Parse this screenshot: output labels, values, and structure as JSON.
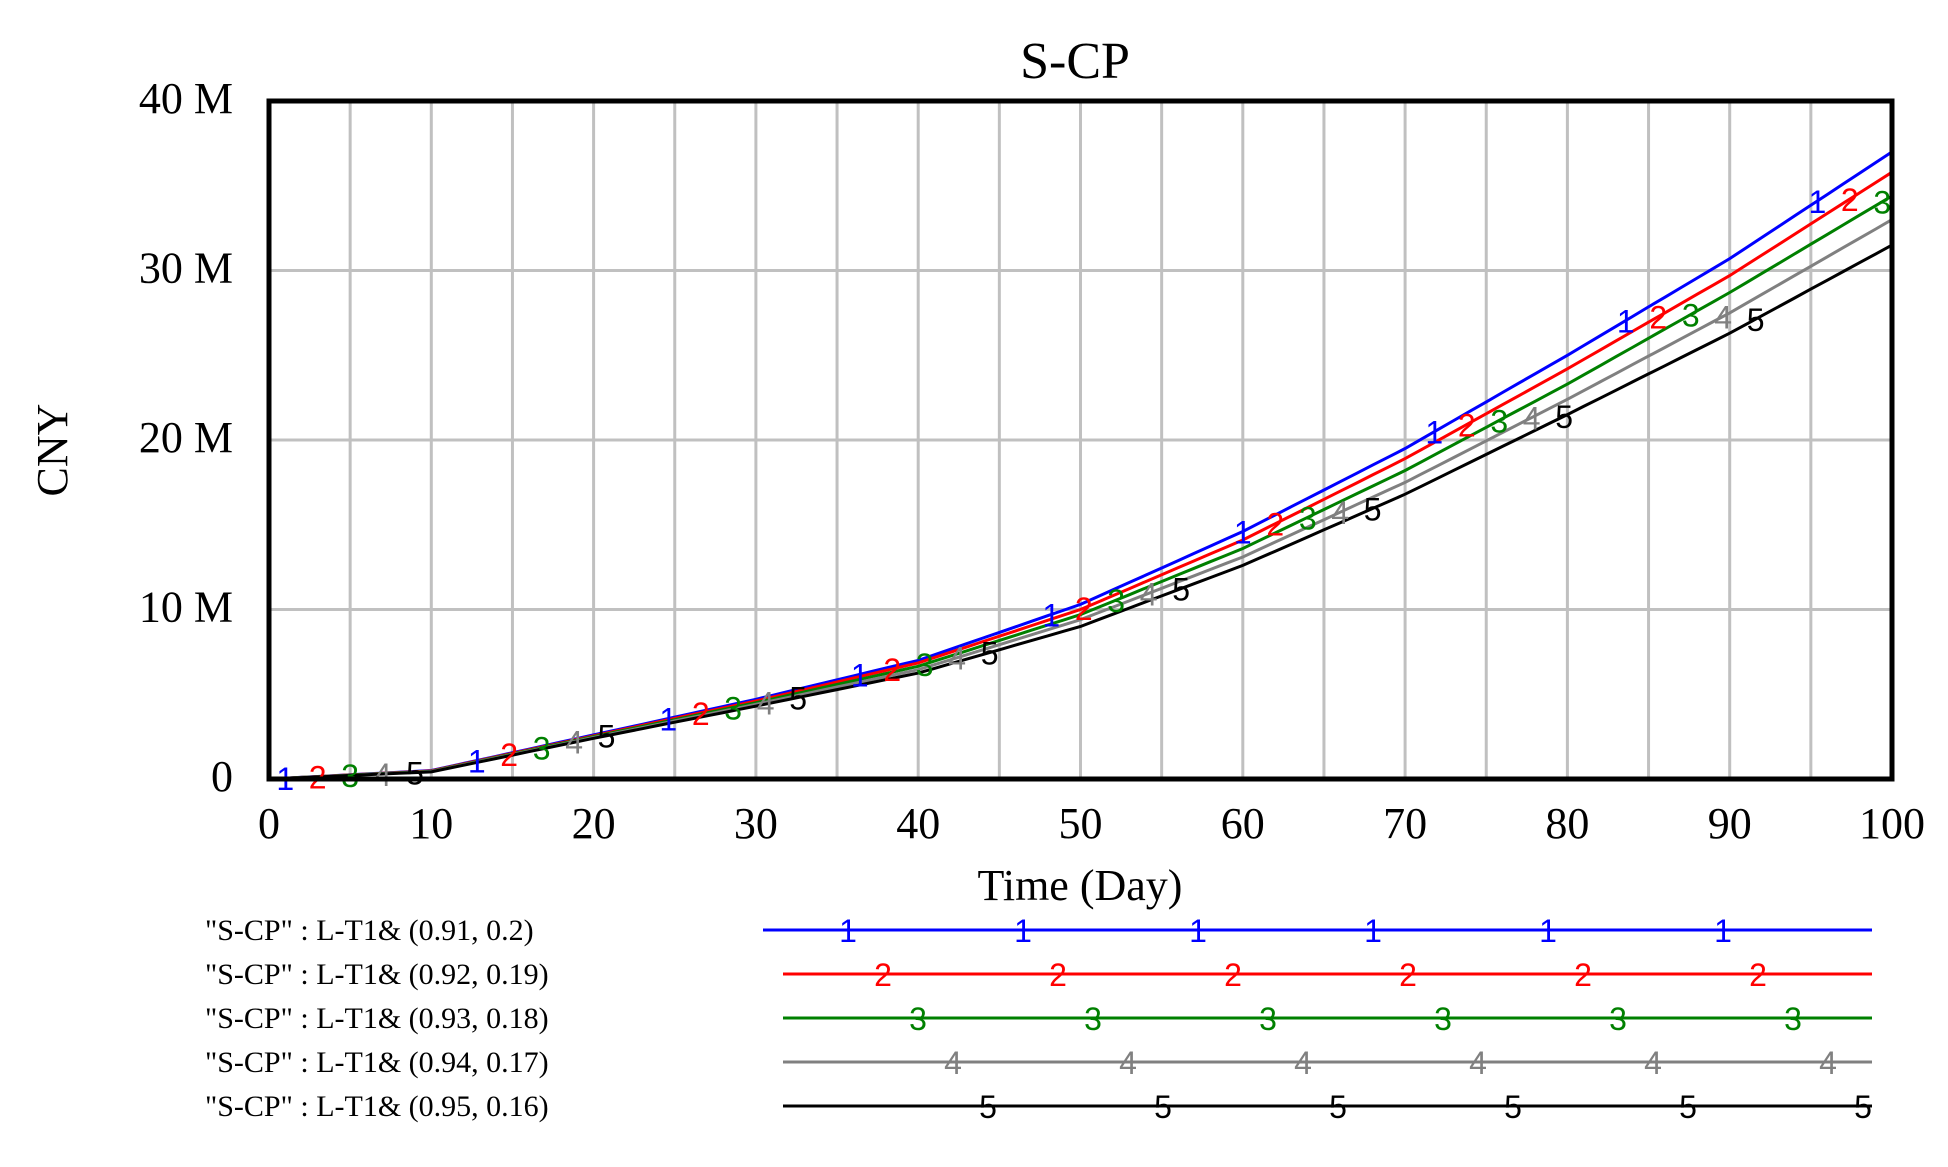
{
  "chart_data": {
    "type": "line",
    "title": "S-CP",
    "xlabel": "Time (Day)",
    "ylabel": "CNY",
    "xlim": [
      0,
      100
    ],
    "ylim": [
      0,
      40000000
    ],
    "x_ticks": [
      0,
      10,
      20,
      30,
      40,
      50,
      60,
      70,
      80,
      90,
      100
    ],
    "x_tick_labels": [
      "0",
      "10",
      "20",
      "30",
      "40",
      "50",
      "60",
      "70",
      "80",
      "90",
      "100"
    ],
    "y_ticks": [
      0,
      10000000,
      20000000,
      30000000,
      40000000
    ],
    "y_tick_labels": [
      "0",
      "10 M",
      "20 M",
      "30 M",
      "40 M"
    ],
    "grid": true,
    "x": [
      0,
      10,
      20,
      30,
      40,
      50,
      60,
      70,
      80,
      90,
      100
    ],
    "series": [
      {
        "name": "\"S-CP\" : L-T1&  (0.91,   0.2)",
        "marker": "1",
        "color": "#0000ff",
        "values": [
          0,
          500000,
          2600000,
          4700000,
          7000000,
          10300000,
          14600000,
          19500000,
          25000000,
          30700000,
          37000000
        ]
      },
      {
        "name": "\"S-CP\" : L-T1&  (0.92,   0.19)",
        "marker": "2",
        "color": "#ff0000",
        "values": [
          0,
          480000,
          2550000,
          4600000,
          6850000,
          10000000,
          14100000,
          18900000,
          24200000,
          29700000,
          35800000
        ]
      },
      {
        "name": "\"S-CP\" : L-T1&  (0.93,   0.18)",
        "marker": "3",
        "color": "#008000",
        "values": [
          0,
          460000,
          2500000,
          4500000,
          6650000,
          9700000,
          13600000,
          18200000,
          23300000,
          28700000,
          34400000
        ]
      },
      {
        "name": "\"S-CP\" : L-T1&  (0.94,   0.17)",
        "marker": "4",
        "color": "#808080",
        "values": [
          0,
          440000,
          2450000,
          4400000,
          6450000,
          9400000,
          13100000,
          17500000,
          22400000,
          27500000,
          33000000
        ]
      },
      {
        "name": "\"S-CP\" : L-T1&  (0.95,   0.16)",
        "marker": "5",
        "color": "#000000",
        "values": [
          0,
          420000,
          2400000,
          4300000,
          6250000,
          9000000,
          12600000,
          16800000,
          21500000,
          26300000,
          31500000
        ]
      }
    ],
    "legend_position": "bottom"
  }
}
